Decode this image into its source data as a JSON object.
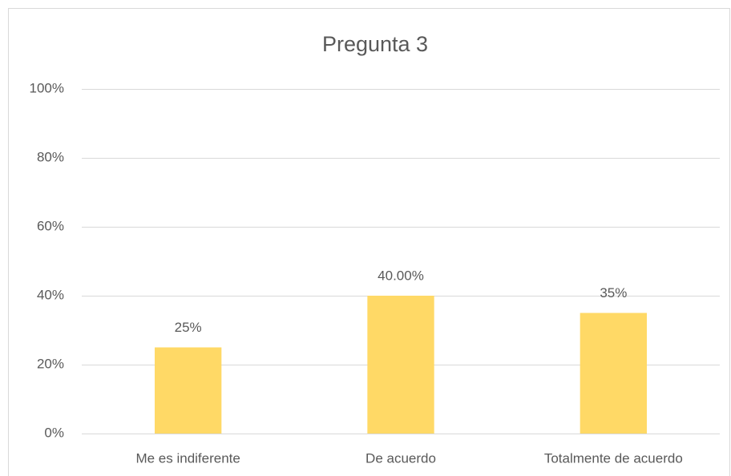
{
  "chart_data": {
    "type": "bar",
    "title": "Pregunta 3",
    "categories": [
      "Me es indiferente",
      "De acuerdo",
      "Totalmente de acuerdo"
    ],
    "values": [
      25,
      40,
      35
    ],
    "value_labels": [
      "25%",
      "40.00%",
      "35%"
    ],
    "color": "#ffd966",
    "ylim": [
      0,
      100
    ],
    "yticks": [
      {
        "value": 0,
        "label": "0%"
      },
      {
        "value": 20,
        "label": "20%"
      },
      {
        "value": 40,
        "label": "40%"
      },
      {
        "value": 60,
        "label": "60%"
      },
      {
        "value": 80,
        "label": "80%"
      },
      {
        "value": 100,
        "label": "100%"
      }
    ],
    "grid": true
  }
}
